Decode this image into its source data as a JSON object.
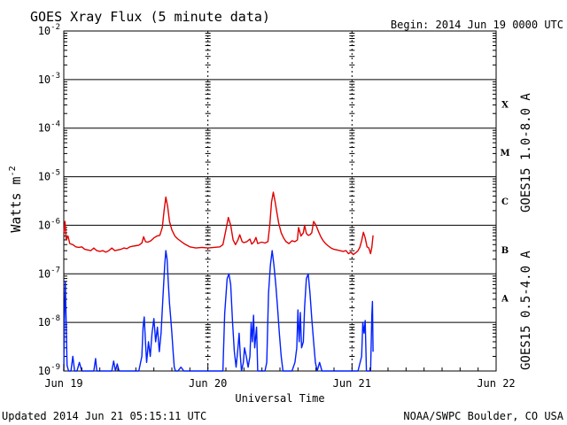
{
  "header": {
    "title": "GOES Xray Flux (5 minute data)",
    "begin": "Begin:  2014 Jun 19 0000 UTC"
  },
  "footer": {
    "updated": "Updated 2014 Jun 21 05:15:11 UTC",
    "credit": "NOAA/SWPC Boulder, CO USA"
  },
  "chart_data": {
    "type": "line",
    "title": "GOES Xray Flux (5 minute data)",
    "xlabel": "Universal Time",
    "ylabel": "Watts m",
    "ylabel_sup": "-2",
    "yscale": "log",
    "ylim": [
      1e-09,
      0.01
    ],
    "xlim": [
      0,
      72
    ],
    "x_unit": "hours since 2014 Jun 19 0000 UTC",
    "x_ticks": [
      {
        "x": 0,
        "label": "Jun 19"
      },
      {
        "x": 24,
        "label": "Jun 20"
      },
      {
        "x": 48,
        "label": "Jun 21"
      },
      {
        "x": 72,
        "label": "Jun 22"
      }
    ],
    "y_ticks": [
      {
        "exp": -9,
        "base": "10",
        "sup": "-9"
      },
      {
        "exp": -8,
        "base": "10",
        "sup": "-8"
      },
      {
        "exp": -7,
        "base": "10",
        "sup": "-7"
      },
      {
        "exp": -6,
        "base": "10",
        "sup": "-6"
      },
      {
        "exp": -5,
        "base": "10",
        "sup": "-5"
      },
      {
        "exp": -4,
        "base": "10",
        "sup": "-4"
      },
      {
        "exp": -3,
        "base": "10",
        "sup": "-3"
      },
      {
        "exp": -2,
        "base": "10",
        "sup": "-2"
      }
    ],
    "flare_classes": [
      {
        "label": "A",
        "exp": -8
      },
      {
        "label": "B",
        "exp": -7
      },
      {
        "label": "C",
        "exp": -6
      },
      {
        "label": "M",
        "exp": -5
      },
      {
        "label": "X",
        "exp": -4
      }
    ],
    "grid": true,
    "colors": {
      "long": "#e00000",
      "short": "#0020ff"
    },
    "series": [
      {
        "name": "GOES15 1.0-8.0 A",
        "color": "#e00000",
        "points": [
          [
            0.0,
            7e-07
          ],
          [
            0.2,
            1.2e-06
          ],
          [
            0.4,
            5e-07
          ],
          [
            0.7,
            6e-07
          ],
          [
            1.0,
            4.2e-07
          ],
          [
            1.5,
            4e-07
          ],
          [
            2.0,
            3.6e-07
          ],
          [
            2.5,
            3.5e-07
          ],
          [
            3.0,
            3.6e-07
          ],
          [
            3.5,
            3.2e-07
          ],
          [
            4.0,
            3.1e-07
          ],
          [
            4.5,
            3e-07
          ],
          [
            5.0,
            3.4e-07
          ],
          [
            5.5,
            3e-07
          ],
          [
            6.0,
            2.9e-07
          ],
          [
            6.5,
            3e-07
          ],
          [
            7.0,
            2.8e-07
          ],
          [
            7.5,
            3e-07
          ],
          [
            8.0,
            3.4e-07
          ],
          [
            8.5,
            3e-07
          ],
          [
            9.0,
            3.1e-07
          ],
          [
            9.5,
            3.2e-07
          ],
          [
            10.0,
            3.4e-07
          ],
          [
            10.5,
            3.3e-07
          ],
          [
            11.0,
            3.6e-07
          ],
          [
            11.5,
            3.7e-07
          ],
          [
            12.0,
            3.8e-07
          ],
          [
            12.5,
            3.9e-07
          ],
          [
            13.0,
            4.3e-07
          ],
          [
            13.3,
            5.8e-07
          ],
          [
            13.6,
            4.6e-07
          ],
          [
            14.0,
            4.5e-07
          ],
          [
            14.5,
            4.8e-07
          ],
          [
            15.0,
            5.5e-07
          ],
          [
            15.5,
            6e-07
          ],
          [
            16.0,
            6.2e-07
          ],
          [
            16.4,
            9e-07
          ],
          [
            16.7,
            2e-06
          ],
          [
            17.0,
            3.8e-06
          ],
          [
            17.3,
            2.4e-06
          ],
          [
            17.6,
            1.2e-06
          ],
          [
            18.0,
            8e-07
          ],
          [
            18.5,
            6e-07
          ],
          [
            19.0,
            5.2e-07
          ],
          [
            20.0,
            4.2e-07
          ],
          [
            21.0,
            3.6e-07
          ],
          [
            22.0,
            3.4e-07
          ],
          [
            23.0,
            3.5e-07
          ],
          [
            24.0,
            3.4e-07
          ],
          [
            25.0,
            3.5e-07
          ],
          [
            26.0,
            3.6e-07
          ],
          [
            26.5,
            4e-07
          ],
          [
            27.0,
            8e-07
          ],
          [
            27.4,
            1.45e-06
          ],
          [
            27.8,
            1e-06
          ],
          [
            28.2,
            5e-07
          ],
          [
            28.6,
            4e-07
          ],
          [
            29.0,
            5e-07
          ],
          [
            29.3,
            6.4e-07
          ],
          [
            29.7,
            4.6e-07
          ],
          [
            30.0,
            4.4e-07
          ],
          [
            30.5,
            4.6e-07
          ],
          [
            31.0,
            5.2e-07
          ],
          [
            31.3,
            4.1e-07
          ],
          [
            31.7,
            4.6e-07
          ],
          [
            32.0,
            5.6e-07
          ],
          [
            32.3,
            4.2e-07
          ],
          [
            32.7,
            4.4e-07
          ],
          [
            33.0,
            4.5e-07
          ],
          [
            33.5,
            4.3e-07
          ],
          [
            34.0,
            4.6e-07
          ],
          [
            34.3,
            1e-06
          ],
          [
            34.6,
            3e-06
          ],
          [
            34.9,
            4.8e-06
          ],
          [
            35.2,
            3e-06
          ],
          [
            35.5,
            1.8e-06
          ],
          [
            35.8,
            1.1e-06
          ],
          [
            36.2,
            7e-07
          ],
          [
            36.6,
            5.5e-07
          ],
          [
            37.0,
            4.6e-07
          ],
          [
            37.5,
            4.2e-07
          ],
          [
            38.0,
            4.8e-07
          ],
          [
            38.5,
            4.6e-07
          ],
          [
            38.9,
            5e-07
          ],
          [
            39.1,
            9e-07
          ],
          [
            39.5,
            6e-07
          ],
          [
            39.9,
            7e-07
          ],
          [
            40.1,
            1e-06
          ],
          [
            40.4,
            6.8e-07
          ],
          [
            40.7,
            6.2e-07
          ],
          [
            41.0,
            6.4e-07
          ],
          [
            41.3,
            7e-07
          ],
          [
            41.6,
            1.2e-06
          ],
          [
            42.0,
            1e-06
          ],
          [
            42.4,
            7.5e-07
          ],
          [
            42.8,
            5.8e-07
          ],
          [
            43.2,
            4.8e-07
          ],
          [
            43.6,
            4.2e-07
          ],
          [
            44.0,
            3.8e-07
          ],
          [
            44.5,
            3.4e-07
          ],
          [
            45.0,
            3.2e-07
          ],
          [
            45.5,
            3.1e-07
          ],
          [
            46.0,
            3e-07
          ],
          [
            46.5,
            2.9e-07
          ],
          [
            47.0,
            3e-07
          ],
          [
            47.4,
            2.6e-07
          ],
          [
            47.8,
            2.8e-07
          ],
          [
            48.2,
            2.5e-07
          ],
          [
            48.6,
            2.7e-07
          ],
          [
            49.0,
            3e-07
          ],
          [
            49.3,
            3.5e-07
          ],
          [
            49.6,
            4.8e-07
          ],
          [
            49.9,
            7.2e-07
          ],
          [
            50.2,
            5.5e-07
          ],
          [
            50.5,
            3.6e-07
          ],
          [
            50.8,
            3.4e-07
          ],
          [
            51.1,
            2.6e-07
          ],
          [
            51.3,
            3.5e-07
          ],
          [
            51.5,
            6.2e-07
          ]
        ]
      },
      {
        "name": "GOES15 0.5-4.0 A",
        "color": "#0020ff",
        "points": [
          [
            0.0,
            1e-09
          ],
          [
            0.1,
            1.1e-08
          ],
          [
            0.25,
            7e-08
          ],
          [
            0.4,
            1e-08
          ],
          [
            0.55,
            1.3e-09
          ],
          [
            0.8,
            1e-09
          ],
          [
            1.2,
            1e-09
          ],
          [
            1.5,
            2e-09
          ],
          [
            1.8,
            1e-09
          ],
          [
            2.2,
            1e-09
          ],
          [
            2.6,
            1.5e-09
          ],
          [
            3.0,
            1e-09
          ],
          [
            3.5,
            1e-09
          ],
          [
            4.0,
            1e-09
          ],
          [
            4.5,
            1e-09
          ],
          [
            5.0,
            1e-09
          ],
          [
            5.3,
            1.8e-09
          ],
          [
            5.5,
            1e-09
          ],
          [
            6.0,
            1e-09
          ],
          [
            7.0,
            1e-09
          ],
          [
            8.0,
            1e-09
          ],
          [
            8.3,
            1.6e-09
          ],
          [
            8.6,
            1e-09
          ],
          [
            8.9,
            1.4e-09
          ],
          [
            9.2,
            1e-09
          ],
          [
            10.0,
            1e-09
          ],
          [
            11.0,
            1e-09
          ],
          [
            12.0,
            1e-09
          ],
          [
            12.5,
            1e-09
          ],
          [
            13.0,
            2e-09
          ],
          [
            13.2,
            8e-09
          ],
          [
            13.4,
            1.3e-08
          ],
          [
            13.6,
            4e-09
          ],
          [
            13.8,
            1.5e-09
          ],
          [
            14.1,
            4e-09
          ],
          [
            14.4,
            2e-09
          ],
          [
            14.7,
            6e-09
          ],
          [
            15.0,
            1.2e-08
          ],
          [
            15.3,
            4e-09
          ],
          [
            15.6,
            8e-09
          ],
          [
            15.9,
            2.5e-09
          ],
          [
            16.2,
            6e-09
          ],
          [
            16.5,
            3e-08
          ],
          [
            16.8,
            1.5e-07
          ],
          [
            17.0,
            3e-07
          ],
          [
            17.2,
            2e-07
          ],
          [
            17.4,
            7e-08
          ],
          [
            17.6,
            2.5e-08
          ],
          [
            17.8,
            1.3e-08
          ],
          [
            18.0,
            6e-09
          ],
          [
            18.2,
            2.5e-09
          ],
          [
            18.4,
            1.2e-09
          ],
          [
            18.6,
            1e-09
          ],
          [
            19.0,
            1e-09
          ],
          [
            19.5,
            1.2e-09
          ],
          [
            20.0,
            1e-09
          ],
          [
            21.0,
            1e-09
          ],
          [
            22.0,
            1e-09
          ],
          [
            23.0,
            1e-09
          ],
          [
            24.0,
            1e-09
          ],
          [
            25.0,
            1e-09
          ],
          [
            26.0,
            1e-09
          ],
          [
            26.5,
            1e-09
          ],
          [
            26.8,
            1.5e-08
          ],
          [
            27.2,
            8e-08
          ],
          [
            27.5,
            1e-07
          ],
          [
            27.8,
            6e-08
          ],
          [
            28.1,
            1e-08
          ],
          [
            28.4,
            2.5e-09
          ],
          [
            28.7,
            1.2e-09
          ],
          [
            29.0,
            3e-09
          ],
          [
            29.2,
            6e-09
          ],
          [
            29.4,
            2e-09
          ],
          [
            29.6,
            1e-09
          ],
          [
            29.9,
            1.5e-09
          ],
          [
            30.1,
            3e-09
          ],
          [
            30.4,
            2e-09
          ],
          [
            30.7,
            1.2e-09
          ],
          [
            31.0,
            2e-09
          ],
          [
            31.2,
            1e-08
          ],
          [
            31.4,
            4e-09
          ],
          [
            31.6,
            1.4e-08
          ],
          [
            31.8,
            3e-09
          ],
          [
            32.1,
            8e-09
          ],
          [
            32.3,
            1e-09
          ],
          [
            33.0,
            1e-09
          ],
          [
            33.5,
            1e-09
          ],
          [
            33.8,
            1.5e-09
          ],
          [
            34.1,
            4e-08
          ],
          [
            34.4,
            1.5e-07
          ],
          [
            34.7,
            3e-07
          ],
          [
            35.0,
            1.5e-07
          ],
          [
            35.3,
            6e-08
          ],
          [
            35.6,
            2e-08
          ],
          [
            35.9,
            6e-09
          ],
          [
            36.2,
            2e-09
          ],
          [
            36.5,
            1e-09
          ],
          [
            37.0,
            1e-09
          ],
          [
            37.5,
            1e-09
          ],
          [
            38.0,
            1e-09
          ],
          [
            38.5,
            1.5e-09
          ],
          [
            38.8,
            3e-09
          ],
          [
            39.0,
            1.8e-08
          ],
          [
            39.2,
            4e-09
          ],
          [
            39.4,
            1.6e-08
          ],
          [
            39.6,
            3e-09
          ],
          [
            39.9,
            4e-09
          ],
          [
            40.1,
            2e-08
          ],
          [
            40.4,
            8e-08
          ],
          [
            40.7,
            1e-07
          ],
          [
            41.0,
            4e-08
          ],
          [
            41.3,
            1.2e-08
          ],
          [
            41.6,
            4e-09
          ],
          [
            41.9,
            1.5e-09
          ],
          [
            42.2,
            1e-09
          ],
          [
            42.6,
            1.5e-09
          ],
          [
            43.0,
            1e-09
          ],
          [
            44.0,
            1e-09
          ],
          [
            45.0,
            1e-09
          ],
          [
            46.0,
            1e-09
          ],
          [
            47.0,
            1e-09
          ],
          [
            48.0,
            1e-09
          ],
          [
            49.0,
            1e-09
          ],
          [
            49.6,
            2e-09
          ],
          [
            49.8,
            1e-08
          ],
          [
            50.0,
            6e-09
          ],
          [
            50.2,
            1.1e-08
          ],
          [
            50.4,
            1e-09
          ],
          [
            50.8,
            1e-09
          ],
          [
            51.1,
            1e-09
          ],
          [
            51.3,
            1.4e-08
          ],
          [
            51.4,
            2.7e-08
          ],
          [
            51.5,
            2.5e-09
          ]
        ]
      }
    ]
  }
}
